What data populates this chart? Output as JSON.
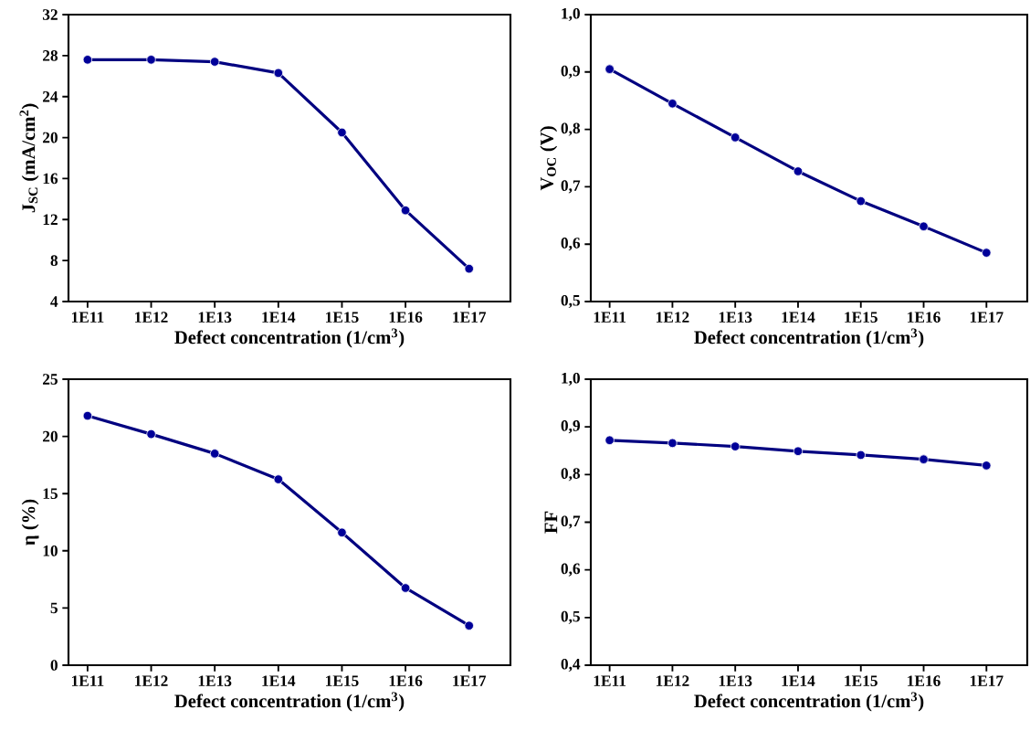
{
  "chart_data": [
    {
      "type": "line",
      "ylabel": "J$_{SC}$ (mA/cm$^{2}$)",
      "xlabel": "Defect concentration (1/cm$^{3}$)",
      "categories": [
        "1E11",
        "1E12",
        "1E13",
        "1E14",
        "1E15",
        "1E16",
        "1E17"
      ],
      "series": [
        {
          "color": "#000080",
          "values": [
            27.6,
            27.6,
            27.4,
            26.3,
            20.5,
            12.9,
            7.2
          ]
        }
      ],
      "ylim": [
        4,
        32
      ],
      "yticks": [
        4,
        8,
        12,
        16,
        20,
        24,
        28,
        32
      ],
      "grid": false,
      "marker": "circle",
      "line_style": "solid"
    },
    {
      "type": "line",
      "ylabel": "V$_{OC}$ (V)",
      "xlabel": "Defect concentration (1/cm$^{3}$)",
      "categories": [
        "1E11",
        "1E12",
        "1E13",
        "1E14",
        "1E15",
        "1E16",
        "1E17"
      ],
      "series": [
        {
          "color": "#000080",
          "values": [
            0.905,
            0.845,
            0.786,
            0.727,
            0.675,
            0.631,
            0.585
          ]
        }
      ],
      "ylim": [
        0.5,
        1.0
      ],
      "yticks": [
        {
          "value": 0.5,
          "label": "0,5"
        },
        {
          "value": 0.6,
          "label": "0,6"
        },
        {
          "value": 0.7,
          "label": "0,7"
        },
        {
          "value": 0.8,
          "label": "0,8"
        },
        {
          "value": 0.9,
          "label": "0,9"
        },
        {
          "value": 1.0,
          "label": "1,0"
        }
      ],
      "grid": false,
      "marker": "circle",
      "line_style": "solid"
    },
    {
      "type": "line",
      "ylabel": "η (%)",
      "xlabel": "Defect concentration (1/cm$^{3}$)",
      "categories": [
        "1E11",
        "1E12",
        "1E13",
        "1E14",
        "1E15",
        "1E16",
        "1E17"
      ],
      "series": [
        {
          "color": "#000080",
          "values": [
            21.8,
            20.2,
            18.5,
            16.25,
            11.6,
            6.75,
            3.46
          ]
        }
      ],
      "ylim": [
        0,
        25
      ],
      "yticks": [
        0,
        5,
        10,
        15,
        20,
        25
      ],
      "grid": false,
      "marker": "circle",
      "line_style": "solid"
    },
    {
      "type": "line",
      "ylabel": "FF",
      "xlabel": "Defect concentration (1/cm$^{3}$)",
      "categories": [
        "1E11",
        "1E12",
        "1E13",
        "1E14",
        "1E15",
        "1E16",
        "1E17"
      ],
      "series": [
        {
          "color": "#000080",
          "values": [
            0.872,
            0.866,
            0.859,
            0.849,
            0.841,
            0.832,
            0.819
          ]
        }
      ],
      "ylim": [
        0.4,
        1.0
      ],
      "yticks": [
        {
          "value": 0.4,
          "label": "0,4"
        },
        {
          "value": 0.5,
          "label": "0,5"
        },
        {
          "value": 0.6,
          "label": "0,6"
        },
        {
          "value": 0.7,
          "label": "0,7"
        },
        {
          "value": 0.8,
          "label": "0,8"
        },
        {
          "value": 0.9,
          "label": "0,9"
        },
        {
          "value": 1.0,
          "label": "1,0"
        }
      ],
      "grid": false,
      "marker": "circle",
      "line_style": "solid"
    }
  ]
}
